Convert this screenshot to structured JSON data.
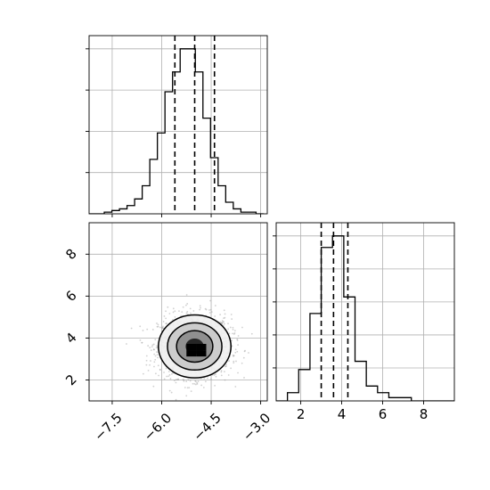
{
  "chart_data": {
    "type": "corner",
    "style": {
      "grid": true,
      "line_color": "#000000",
      "grid_color": "#b0b0b0",
      "point_color": "#9a9a9a"
    },
    "panels": [
      {
        "id": "hist-x",
        "type": "histogram",
        "xlim": [
          -8.2,
          -2.8
        ],
        "ylim": [
          0,
          1.08
        ],
        "xticks": [],
        "yticks": [],
        "bins": [
          -8.2,
          -7.97,
          -7.74,
          -7.51,
          -7.28,
          -7.05,
          -6.82,
          -6.59,
          -6.36,
          -6.13,
          -5.9,
          -5.67,
          -5.44,
          -5.21,
          -4.98,
          -4.75,
          -4.52,
          -4.29,
          -4.06,
          -3.83,
          -3.6,
          -3.37,
          -3.14,
          -2.91
        ],
        "counts": [
          0.0,
          0.0,
          0.01,
          0.02,
          0.03,
          0.05,
          0.09,
          0.17,
          0.33,
          0.49,
          0.74,
          0.86,
          1.0,
          1.0,
          0.86,
          0.58,
          0.34,
          0.17,
          0.07,
          0.03,
          0.01,
          0.01,
          0.0
        ],
        "quantiles": [
          -5.6,
          -5.0,
          -4.4
        ]
      },
      {
        "id": "hist-y",
        "type": "histogram",
        "xlim": [
          0.8,
          9.5
        ],
        "ylim": [
          0,
          1.08
        ],
        "xticks": [
          2,
          4,
          6,
          8
        ],
        "xtick_labels": [
          "2",
          "4",
          "6",
          "8"
        ],
        "yticks": [],
        "bins": [
          0.8,
          1.35,
          1.9,
          2.45,
          3.0,
          3.55,
          4.1,
          4.65,
          5.2,
          5.75,
          6.3,
          6.85,
          7.4,
          7.95,
          8.5,
          9.05,
          9.5
        ],
        "counts": [
          0.0,
          0.05,
          0.19,
          0.53,
          0.93,
          1.0,
          0.63,
          0.24,
          0.09,
          0.05,
          0.02,
          0.02,
          0.0,
          0.0,
          0.0,
          0.0
        ],
        "quantiles": [
          3.0,
          3.6,
          4.3
        ]
      },
      {
        "id": "scatter-xy",
        "type": "scatter_contour",
        "xlim": [
          -8.2,
          -2.8
        ],
        "ylim": [
          1.0,
          9.5
        ],
        "xticks": [
          -7.5,
          -6.0,
          -4.5,
          -3.0
        ],
        "xtick_labels": [
          "−7.5",
          "−6.0",
          "−4.5",
          "−3.0"
        ],
        "yticks": [
          2,
          4,
          6,
          8
        ],
        "ytick_labels": [
          "2",
          "4",
          "6",
          "8"
        ],
        "center": [
          -5.0,
          3.6
        ],
        "spread": [
          0.55,
          0.75
        ]
      }
    ]
  }
}
